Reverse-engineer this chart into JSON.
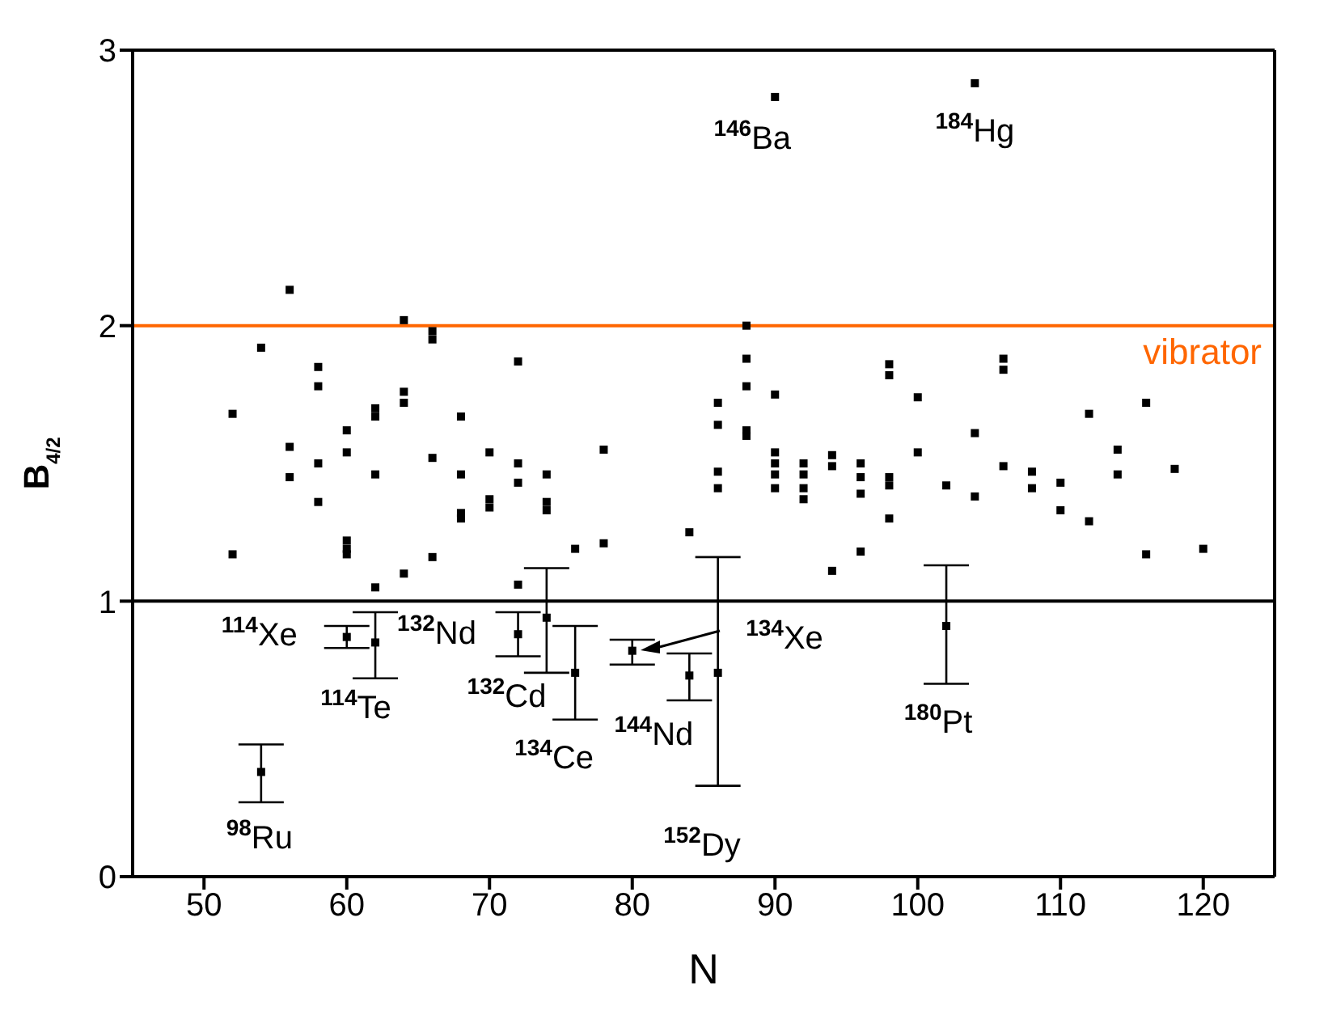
{
  "chart_data": {
    "type": "scatter",
    "xlabel": "N",
    "ylabel": "B$_{4/2}$",
    "xlim": [
      45,
      125
    ],
    "xticks": [
      50,
      60,
      70,
      80,
      90,
      100,
      110,
      120
    ],
    "ylim": [
      0,
      3
    ],
    "yticks": [
      0,
      1,
      2,
      3
    ],
    "marker": "square",
    "legend": false,
    "series": [
      {
        "color": "#000000",
        "x": [
          52,
          52,
          54,
          56,
          56,
          56,
          58,
          58,
          58,
          58,
          60,
          60,
          60,
          60,
          60,
          62,
          62,
          62,
          62,
          64,
          64,
          64,
          64,
          66,
          66,
          66,
          66,
          68,
          68,
          68,
          68,
          70,
          70,
          70,
          72,
          72,
          72,
          72,
          74,
          74,
          74,
          76,
          78,
          78,
          84,
          86,
          86,
          86,
          86,
          88,
          88,
          88,
          88,
          88,
          90,
          90,
          90,
          90,
          90,
          90,
          92,
          92,
          92,
          92,
          94,
          94,
          94,
          96,
          96,
          96,
          96,
          98,
          98,
          98,
          98,
          98,
          100,
          100,
          102,
          104,
          104,
          104,
          106,
          106,
          106,
          108,
          108,
          110,
          110,
          112,
          112,
          114,
          114,
          116,
          116,
          118,
          120
        ],
        "values": [
          1.68,
          1.17,
          1.92,
          2.13,
          1.56,
          1.45,
          1.85,
          1.78,
          1.5,
          1.36,
          1.62,
          1.54,
          1.22,
          1.19,
          1.17,
          1.7,
          1.67,
          1.46,
          1.05,
          2.02,
          1.76,
          1.72,
          1.1,
          1.98,
          1.95,
          1.52,
          1.16,
          1.67,
          1.46,
          1.32,
          1.3,
          1.54,
          1.37,
          1.34,
          1.87,
          1.5,
          1.43,
          1.06,
          1.46,
          1.36,
          1.33,
          1.19,
          1.55,
          1.21,
          1.25,
          1.72,
          1.64,
          1.47,
          1.41,
          2.0,
          1.88,
          1.78,
          1.62,
          1.6,
          2.83,
          1.75,
          1.54,
          1.5,
          1.46,
          1.41,
          1.5,
          1.46,
          1.41,
          1.37,
          1.53,
          1.49,
          1.11,
          1.5,
          1.45,
          1.39,
          1.18,
          1.86,
          1.82,
          1.45,
          1.42,
          1.3,
          1.74,
          1.54,
          1.42,
          2.88,
          1.61,
          1.38,
          1.88,
          1.84,
          1.49,
          1.47,
          1.41,
          1.43,
          1.33,
          1.68,
          1.29,
          1.55,
          1.46,
          1.72,
          1.17,
          1.48,
          1.19
        ]
      },
      {
        "color": "#000000",
        "x": [
          54,
          60,
          62,
          72,
          74,
          76,
          80,
          84,
          86,
          102
        ],
        "values": [
          0.38,
          0.87,
          0.85,
          0.88,
          0.94,
          0.74,
          0.82,
          0.73,
          0.74,
          0.91
        ],
        "errors": [
          [
            0.27,
            0.48
          ],
          [
            0.83,
            0.91
          ],
          [
            0.72,
            0.96
          ],
          [
            0.8,
            0.96
          ],
          [
            0.74,
            1.12
          ],
          [
            0.57,
            0.91
          ],
          [
            0.77,
            0.86
          ],
          [
            0.64,
            0.81
          ],
          [
            0.33,
            1.16
          ],
          [
            0.7,
            1.13
          ]
        ]
      }
    ],
    "ref_lines": [
      {
        "axis": "y",
        "value": 1,
        "color": "#000000"
      },
      {
        "axis": "y",
        "value": 2,
        "label": "vibrator",
        "color": "#ff6600"
      }
    ],
    "annotations": [
      {
        "text": "$^{98}$Ru",
        "x": 54,
        "y": 0.38
      },
      {
        "text": "$^{114}$Xe",
        "x": 60,
        "y": 0.87
      },
      {
        "text": "$^{114}$Te",
        "x": 62,
        "y": 0.85
      },
      {
        "text": "$^{132}$Nd",
        "x": 62,
        "y": 0.85
      },
      {
        "text": "$^{132}$Cd",
        "x": 72,
        "y": 0.88
      },
      {
        "text": "$^{134}$Ce",
        "x": 76,
        "y": 0.74
      },
      {
        "text": "$^{144}$Nd",
        "x": 84,
        "y": 0.73
      },
      "$^{134}$Xe",
      "$^{152}$Dy",
      {
        "text": "$^{180}$Pt",
        "x": 102,
        "y": 0.91
      },
      {
        "text": "$^{146}$Ba",
        "x": 90,
        "y": 2.83
      },
      {
        "text": "$^{184}$Hg",
        "x": 104,
        "y": 2.88
      }
    ]
  }
}
